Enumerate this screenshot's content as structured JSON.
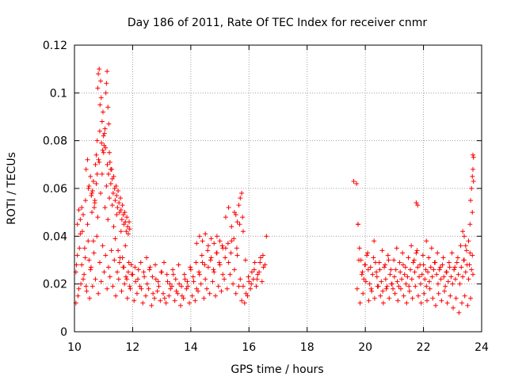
{
  "chart_data": {
    "type": "scatter",
    "title": "Day 186 of 2011, Rate Of TEC Index for receiver cnmr",
    "xlabel": "GPS time / hours",
    "ylabel": "ROTI / TECUs",
    "xlim": [
      10,
      24
    ],
    "ylim": [
      0,
      0.12
    ],
    "grid": true,
    "marker": "+",
    "color": "#ff0000",
    "x_ticks": [
      10,
      12,
      14,
      16,
      18,
      20,
      22,
      24
    ],
    "x_tick_labels": [
      "10",
      "12",
      "14",
      "16",
      "18",
      "20",
      "22",
      "24"
    ],
    "y_ticks": [
      0,
      0.02,
      0.04,
      0.06,
      0.08,
      0.1,
      0.12
    ],
    "y_tick_labels": [
      "0",
      "0.02",
      "0.04",
      "0.06",
      "0.08",
      "0.1",
      "0.12"
    ],
    "series": [
      {
        "name": "ROTI",
        "x": [
          10.05,
          10.1,
          10.15,
          10.2,
          10.25,
          10.3,
          10.35,
          10.4,
          10.45,
          10.5,
          10.55,
          10.6,
          10.65,
          10.7,
          10.75,
          10.8,
          10.85,
          10.9,
          10.95,
          11.0,
          11.05,
          11.1,
          11.15,
          11.2,
          11.25,
          11.3,
          11.35,
          11.4,
          11.45,
          11.5,
          11.55,
          11.6,
          11.65,
          11.7,
          11.75,
          11.8,
          11.85,
          11.9,
          11.95,
          12.0,
          12.1,
          12.2,
          12.3,
          12.4,
          12.5,
          12.6,
          12.7,
          12.8,
          12.9,
          13.0,
          13.1,
          13.2,
          13.3,
          13.4,
          13.5,
          13.6,
          13.7,
          13.8,
          13.9,
          14.0,
          14.1,
          14.2,
          14.3,
          14.4,
          14.5,
          14.6,
          14.7,
          14.8,
          14.9,
          15.0,
          15.1,
          15.2,
          15.3,
          15.4,
          15.5,
          15.6,
          15.7,
          15.8,
          15.9,
          16.0,
          16.1,
          16.2,
          16.3,
          16.4,
          16.5,
          16.6,
          10.05,
          10.12,
          10.22,
          10.33,
          10.42,
          10.52,
          10.62,
          10.72,
          10.82,
          10.92,
          11.02,
          11.12,
          11.22,
          11.32,
          11.42,
          11.52,
          11.62,
          11.72,
          11.82,
          11.92,
          12.05,
          12.15,
          12.25,
          12.35,
          12.45,
          12.55,
          12.65,
          12.75,
          12.85,
          12.95,
          13.05,
          13.15,
          13.25,
          13.35,
          13.45,
          13.55,
          13.65,
          13.75,
          13.85,
          13.95,
          14.05,
          14.15,
          14.25,
          14.35,
          14.45,
          14.55,
          14.65,
          14.75,
          14.85,
          14.95,
          15.05,
          15.15,
          15.25,
          15.35,
          15.45,
          15.55,
          15.65,
          15.75,
          15.85,
          15.95,
          16.05,
          16.15,
          16.25,
          16.35,
          16.45,
          16.55,
          10.07,
          10.17,
          10.27,
          10.37,
          10.47,
          10.57,
          10.67,
          10.77,
          10.87,
          10.97,
          11.07,
          11.17,
          11.27,
          11.37,
          11.47,
          11.57,
          11.67,
          11.77,
          11.87,
          11.97,
          12.08,
          12.18,
          12.28,
          12.38,
          12.48,
          12.58,
          12.68,
          12.78,
          12.88,
          12.98,
          13.08,
          13.18,
          13.28,
          13.38,
          13.48,
          13.58,
          13.68,
          13.78,
          13.88,
          13.98,
          14.08,
          14.18,
          14.28,
          14.38,
          14.48,
          14.58,
          14.68,
          14.78,
          14.88,
          14.98,
          15.08,
          15.18,
          15.28,
          15.38,
          15.48,
          15.58,
          15.68,
          15.78,
          15.88,
          15.98,
          16.08,
          16.18,
          16.28,
          16.38,
          16.48,
          10.8,
          10.82,
          10.85,
          10.88,
          10.9,
          10.92,
          10.95,
          10.98,
          11.0,
          11.02,
          11.05,
          11.08,
          11.1,
          11.12,
          11.15,
          11.18,
          11.2,
          10.78,
          10.83,
          10.87,
          10.93,
          10.97,
          11.03,
          11.07,
          11.13,
          11.17,
          11.22,
          11.25,
          11.28,
          11.3,
          11.33,
          11.35,
          11.38,
          11.4,
          11.43,
          11.45,
          11.48,
          11.5,
          11.53,
          11.55,
          11.58,
          11.6,
          11.63,
          11.65,
          11.68,
          11.7,
          11.73,
          11.75,
          11.78,
          11.8,
          11.83,
          11.85,
          11.88,
          11.9,
          10.4,
          10.45,
          10.5,
          10.55,
          10.6,
          10.65,
          10.7,
          10.72,
          10.75,
          10.78,
          10.62,
          10.68,
          10.58,
          10.48,
          10.38,
          10.3,
          10.25,
          10.2,
          10.15,
          10.1,
          15.2,
          15.3,
          15.4,
          15.5,
          15.6,
          15.7,
          15.75,
          15.8,
          15.65,
          15.55,
          14.2,
          14.3,
          14.4,
          14.5,
          14.6,
          14.7,
          14.8,
          14.9,
          15.0,
          15.1,
          19.7,
          19.75,
          19.8,
          19.85,
          19.9,
          19.95,
          20.0,
          20.05,
          20.1,
          20.15,
          20.2,
          20.25,
          20.3,
          20.35,
          20.4,
          20.45,
          20.5,
          20.55,
          20.6,
          20.65,
          20.7,
          20.75,
          20.8,
          20.85,
          20.9,
          20.95,
          21.0,
          21.05,
          21.1,
          21.15,
          21.2,
          21.25,
          21.3,
          21.35,
          21.4,
          21.45,
          21.5,
          21.55,
          21.6,
          21.65,
          21.7,
          21.75,
          21.8,
          21.85,
          21.9,
          21.95,
          22.0,
          22.05,
          22.1,
          22.15,
          22.2,
          22.25,
          22.3,
          22.35,
          22.4,
          22.45,
          22.5,
          22.55,
          22.6,
          22.65,
          22.7,
          22.75,
          22.8,
          22.85,
          22.9,
          22.95,
          23.0,
          23.05,
          23.1,
          23.15,
          23.2,
          23.25,
          23.3,
          23.35,
          23.4,
          23.45,
          23.5,
          23.55,
          23.6,
          23.65,
          23.7,
          19.72,
          19.82,
          19.92,
          20.02,
          20.12,
          20.22,
          20.32,
          20.42,
          20.52,
          20.62,
          20.72,
          20.82,
          20.92,
          21.02,
          21.12,
          21.22,
          21.32,
          21.42,
          21.52,
          21.62,
          21.72,
          21.82,
          21.92,
          22.02,
          22.12,
          22.22,
          22.32,
          22.42,
          22.52,
          22.62,
          22.72,
          22.82,
          22.92,
          23.02,
          23.12,
          23.22,
          23.32,
          23.42,
          23.52,
          23.62,
          19.78,
          19.88,
          19.98,
          20.08,
          20.18,
          20.28,
          20.38,
          20.48,
          20.58,
          20.68,
          20.78,
          20.88,
          20.98,
          21.08,
          21.18,
          21.28,
          21.38,
          21.48,
          21.58,
          21.68,
          21.78,
          21.88,
          21.98,
          22.08,
          22.18,
          22.28,
          22.38,
          22.48,
          22.58,
          22.68,
          22.78,
          22.88,
          22.98,
          23.08,
          23.18,
          23.28,
          23.38,
          23.48,
          23.58,
          23.68,
          19.6,
          19.75,
          21.75,
          21.8,
          22.1,
          23.35,
          23.4,
          23.45,
          23.55,
          23.6,
          23.62,
          23.65,
          23.68,
          23.7,
          23.7,
          23.72,
          23.68,
          23.72
        ],
        "y": [
          0.025,
          0.032,
          0.018,
          0.041,
          0.028,
          0.022,
          0.035,
          0.019,
          0.045,
          0.03,
          0.026,
          0.05,
          0.038,
          0.055,
          0.062,
          0.048,
          0.071,
          0.058,
          0.066,
          0.075,
          0.052,
          0.061,
          0.047,
          0.056,
          0.068,
          0.053,
          0.044,
          0.039,
          0.049,
          0.034,
          0.029,
          0.042,
          0.031,
          0.027,
          0.036,
          0.022,
          0.025,
          0.019,
          0.028,
          0.024,
          0.021,
          0.026,
          0.018,
          0.023,
          0.02,
          0.027,
          0.016,
          0.022,
          0.019,
          0.025,
          0.014,
          0.021,
          0.018,
          0.024,
          0.017,
          0.02,
          0.015,
          0.022,
          0.019,
          0.026,
          0.021,
          0.018,
          0.024,
          0.029,
          0.022,
          0.027,
          0.031,
          0.025,
          0.033,
          0.028,
          0.024,
          0.035,
          0.029,
          0.038,
          0.026,
          0.032,
          0.022,
          0.019,
          0.016,
          0.021,
          0.025,
          0.029,
          0.024,
          0.031,
          0.027,
          0.04,
          0.012,
          0.015,
          0.02,
          0.024,
          0.017,
          0.014,
          0.019,
          0.022,
          0.016,
          0.021,
          0.025,
          0.018,
          0.023,
          0.019,
          0.015,
          0.022,
          0.017,
          0.02,
          0.014,
          0.018,
          0.013,
          0.016,
          0.019,
          0.012,
          0.015,
          0.018,
          0.011,
          0.014,
          0.017,
          0.013,
          0.016,
          0.012,
          0.015,
          0.019,
          0.013,
          0.016,
          0.011,
          0.014,
          0.018,
          0.012,
          0.015,
          0.013,
          0.017,
          0.02,
          0.014,
          0.018,
          0.016,
          0.021,
          0.015,
          0.019,
          0.017,
          0.022,
          0.018,
          0.024,
          0.02,
          0.016,
          0.019,
          0.013,
          0.012,
          0.015,
          0.018,
          0.022,
          0.019,
          0.025,
          0.021,
          0.028,
          0.028,
          0.035,
          0.042,
          0.031,
          0.038,
          0.027,
          0.033,
          0.04,
          0.029,
          0.036,
          0.032,
          0.027,
          0.034,
          0.03,
          0.025,
          0.031,
          0.027,
          0.023,
          0.029,
          0.024,
          0.027,
          0.022,
          0.029,
          0.025,
          0.031,
          0.026,
          0.023,
          0.028,
          0.021,
          0.025,
          0.029,
          0.024,
          0.02,
          0.026,
          0.022,
          0.028,
          0.019,
          0.024,
          0.021,
          0.027,
          0.023,
          0.029,
          0.025,
          0.032,
          0.028,
          0.034,
          0.03,
          0.026,
          0.033,
          0.029,
          0.036,
          0.031,
          0.037,
          0.033,
          0.039,
          0.035,
          0.045,
          0.048,
          0.03,
          0.023,
          0.02,
          0.026,
          0.022,
          0.029,
          0.032,
          0.102,
          0.108,
          0.11,
          0.095,
          0.105,
          0.098,
          0.088,
          0.092,
          0.082,
          0.078,
          0.085,
          0.1,
          0.104,
          0.109,
          0.094,
          0.087,
          0.075,
          0.08,
          0.072,
          0.084,
          0.079,
          0.076,
          0.083,
          0.077,
          0.07,
          0.066,
          0.071,
          0.062,
          0.068,
          0.064,
          0.058,
          0.065,
          0.06,
          0.055,
          0.061,
          0.057,
          0.052,
          0.059,
          0.054,
          0.05,
          0.056,
          0.051,
          0.047,
          0.053,
          0.049,
          0.045,
          0.05,
          0.046,
          0.042,
          0.048,
          0.044,
          0.041,
          0.046,
          0.043,
          0.068,
          0.072,
          0.061,
          0.065,
          0.058,
          0.063,
          0.054,
          0.07,
          0.074,
          0.066,
          0.059,
          0.052,
          0.057,
          0.06,
          0.055,
          0.049,
          0.052,
          0.047,
          0.051,
          0.045,
          0.048,
          0.052,
          0.044,
          0.05,
          0.046,
          0.056,
          0.058,
          0.042,
          0.053,
          0.049,
          0.037,
          0.04,
          0.038,
          0.041,
          0.036,
          0.039,
          0.037,
          0.04,
          0.038,
          0.035,
          0.062,
          0.045,
          0.035,
          0.03,
          0.025,
          0.022,
          0.028,
          0.032,
          0.026,
          0.02,
          0.018,
          0.024,
          0.038,
          0.029,
          0.023,
          0.019,
          0.026,
          0.021,
          0.017,
          0.027,
          0.022,
          0.019,
          0.03,
          0.024,
          0.02,
          0.018,
          0.023,
          0.026,
          0.021,
          0.019,
          0.025,
          0.022,
          0.028,
          0.024,
          0.02,
          0.023,
          0.019,
          0.026,
          0.022,
          0.029,
          0.025,
          0.033,
          0.027,
          0.023,
          0.02,
          0.024,
          0.028,
          0.022,
          0.019,
          0.025,
          0.021,
          0.027,
          0.023,
          0.026,
          0.029,
          0.024,
          0.02,
          0.026,
          0.022,
          0.028,
          0.023,
          0.019,
          0.025,
          0.021,
          0.027,
          0.023,
          0.02,
          0.026,
          0.022,
          0.029,
          0.024,
          0.02,
          0.027,
          0.023,
          0.03,
          0.025,
          0.028,
          0.022,
          0.033,
          0.026,
          0.024,
          0.018,
          0.012,
          0.016,
          0.021,
          0.013,
          0.017,
          0.014,
          0.019,
          0.015,
          0.012,
          0.018,
          0.014,
          0.02,
          0.016,
          0.013,
          0.018,
          0.015,
          0.012,
          0.017,
          0.014,
          0.019,
          0.015,
          0.012,
          0.016,
          0.013,
          0.018,
          0.014,
          0.011,
          0.016,
          0.013,
          0.017,
          0.012,
          0.015,
          0.01,
          0.014,
          0.008,
          0.012,
          0.015,
          0.011,
          0.014,
          0.03,
          0.024,
          0.028,
          0.033,
          0.027,
          0.031,
          0.025,
          0.029,
          0.034,
          0.028,
          0.032,
          0.026,
          0.03,
          0.035,
          0.029,
          0.033,
          0.027,
          0.031,
          0.036,
          0.03,
          0.034,
          0.028,
          0.032,
          0.026,
          0.031,
          0.035,
          0.029,
          0.033,
          0.027,
          0.031,
          0.025,
          0.029,
          0.033,
          0.027,
          0.031,
          0.036,
          0.03,
          0.034,
          0.028,
          0.032,
          0.063,
          0.045,
          0.054,
          0.053,
          0.038,
          0.042,
          0.04,
          0.036,
          0.038,
          0.045,
          0.055,
          0.06,
          0.065,
          0.068,
          0.074,
          0.073,
          0.05,
          0.063
        ]
      }
    ]
  }
}
